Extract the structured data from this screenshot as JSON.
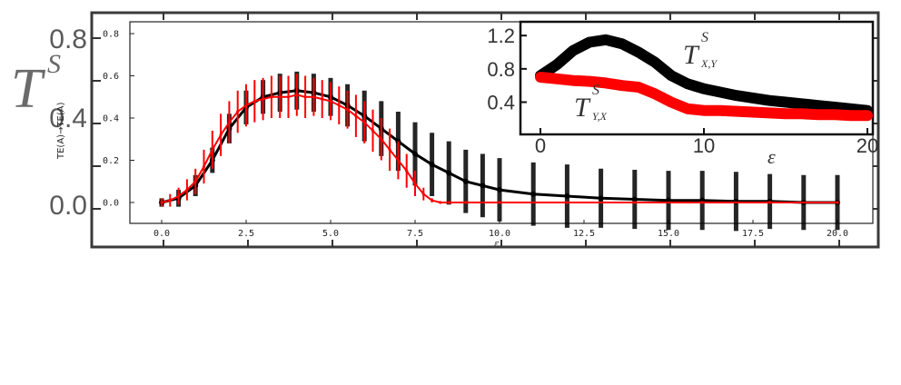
{
  "chart_data": [
    {
      "type": "line",
      "ylabel_symbol": "T",
      "ylabel_superscript": "S",
      "yticks": [
        "0.0",
        "0.4",
        "0.8"
      ],
      "ylim": [
        -0.12,
        0.92
      ]
    },
    {
      "type": "line",
      "panel": "main",
      "xlabel": "ε",
      "ylabel": "TE(A)→TE(A)",
      "xticks": [
        "0.0",
        "2.5",
        "5.0",
        "7.5",
        "10.0",
        "12.5",
        "15.0",
        "17.5",
        "20.0"
      ],
      "yticks": [
        "0.0",
        "0.2",
        "0.4",
        "0.6",
        "0.8"
      ],
      "xlim": [
        0,
        20
      ],
      "ylim": [
        -0.12,
        0.86
      ],
      "grid": false,
      "series": [
        {
          "color": "#000000",
          "style": "mean with error bars",
          "x": [
            0.0,
            0.5,
            1.0,
            1.5,
            2.0,
            2.5,
            3.0,
            3.5,
            4.0,
            4.5,
            5.0,
            5.5,
            6.0,
            6.5,
            7.0,
            7.5,
            8.0,
            8.5,
            9.0,
            9.5,
            10.0,
            11.0,
            12.0,
            13.0,
            14.0,
            15.0,
            16.0,
            17.0,
            18.0,
            19.0,
            20.0
          ],
          "y": [
            0.0,
            0.02,
            0.08,
            0.2,
            0.35,
            0.45,
            0.5,
            0.52,
            0.53,
            0.52,
            0.5,
            0.46,
            0.41,
            0.35,
            0.29,
            0.23,
            0.18,
            0.14,
            0.1,
            0.08,
            0.06,
            0.04,
            0.03,
            0.02,
            0.015,
            0.01,
            0.01,
            0.005,
            0.005,
            0.0,
            0.0
          ],
          "err": [
            0.02,
            0.04,
            0.05,
            0.06,
            0.07,
            0.08,
            0.08,
            0.09,
            0.09,
            0.09,
            0.09,
            0.1,
            0.12,
            0.13,
            0.14,
            0.15,
            0.15,
            0.15,
            0.15,
            0.15,
            0.15,
            0.15,
            0.15,
            0.14,
            0.14,
            0.14,
            0.14,
            0.14,
            0.13,
            0.13,
            0.13
          ]
        },
        {
          "color": "#ff0000",
          "style": "mean with error bars",
          "x": [
            0.0,
            0.25,
            0.5,
            0.75,
            1.0,
            1.25,
            1.5,
            1.75,
            2.0,
            2.25,
            2.5,
            2.75,
            3.0,
            3.25,
            3.5,
            3.75,
            4.0,
            4.25,
            4.5,
            4.75,
            5.0,
            5.25,
            5.5,
            5.75,
            6.0,
            6.25,
            6.5,
            6.75,
            7.0,
            7.25,
            7.5,
            7.75,
            8.0,
            8.25,
            8.5,
            9.0,
            10.0,
            12.0,
            14.0,
            16.0,
            18.0,
            20.0
          ],
          "y": [
            0.0,
            0.01,
            0.03,
            0.06,
            0.1,
            0.17,
            0.25,
            0.32,
            0.38,
            0.43,
            0.46,
            0.48,
            0.49,
            0.5,
            0.5,
            0.5,
            0.51,
            0.5,
            0.5,
            0.49,
            0.48,
            0.46,
            0.44,
            0.41,
            0.38,
            0.34,
            0.3,
            0.25,
            0.2,
            0.15,
            0.09,
            0.04,
            0.01,
            0.0,
            0.0,
            0.0,
            0.0,
            0.0,
            0.0,
            0.0,
            0.0,
            0.0
          ],
          "err": [
            0.02,
            0.03,
            0.04,
            0.05,
            0.06,
            0.08,
            0.09,
            0.1,
            0.1,
            0.1,
            0.1,
            0.1,
            0.1,
            0.1,
            0.1,
            0.1,
            0.1,
            0.1,
            0.09,
            0.09,
            0.09,
            0.09,
            0.09,
            0.1,
            0.1,
            0.1,
            0.1,
            0.1,
            0.09,
            0.08,
            0.06,
            0.03,
            0.01,
            0.0,
            0.0,
            0.0,
            0.0,
            0.0,
            0.0,
            0.0,
            0.0,
            0.0
          ]
        }
      ]
    },
    {
      "type": "line",
      "panel": "inset",
      "xlabel": "ε",
      "xticks": [
        "0",
        "10",
        "20"
      ],
      "yticks": [
        "0.4",
        "0.8",
        "1.2"
      ],
      "xlim": [
        -0.5,
        20.5
      ],
      "ylim": [
        0.1,
        1.3
      ],
      "series": [
        {
          "label": "T",
          "label_sup": "S",
          "label_sub": "X,Y",
          "color": "#000000",
          "x": [
            0,
            1,
            2,
            3,
            4,
            5,
            6,
            7,
            8,
            9,
            10,
            11,
            12,
            13,
            14,
            15,
            16,
            17,
            18,
            19,
            20
          ],
          "y": [
            0.72,
            0.85,
            1.02,
            1.12,
            1.15,
            1.1,
            1.0,
            0.88,
            0.72,
            0.62,
            0.56,
            0.52,
            0.48,
            0.45,
            0.42,
            0.4,
            0.38,
            0.36,
            0.34,
            0.32,
            0.3
          ]
        },
        {
          "label": "T",
          "label_sup": "S",
          "label_sub": "Y,X",
          "color": "#ff0000",
          "x": [
            0,
            1,
            2,
            3,
            4,
            5,
            6,
            7,
            8,
            9,
            10,
            11,
            12,
            13,
            14,
            15,
            16,
            17,
            18,
            19,
            20
          ],
          "y": [
            0.7,
            0.68,
            0.66,
            0.65,
            0.63,
            0.6,
            0.58,
            0.5,
            0.4,
            0.32,
            0.3,
            0.3,
            0.29,
            0.28,
            0.27,
            0.26,
            0.26,
            0.25,
            0.25,
            0.24,
            0.24
          ]
        }
      ]
    }
  ]
}
